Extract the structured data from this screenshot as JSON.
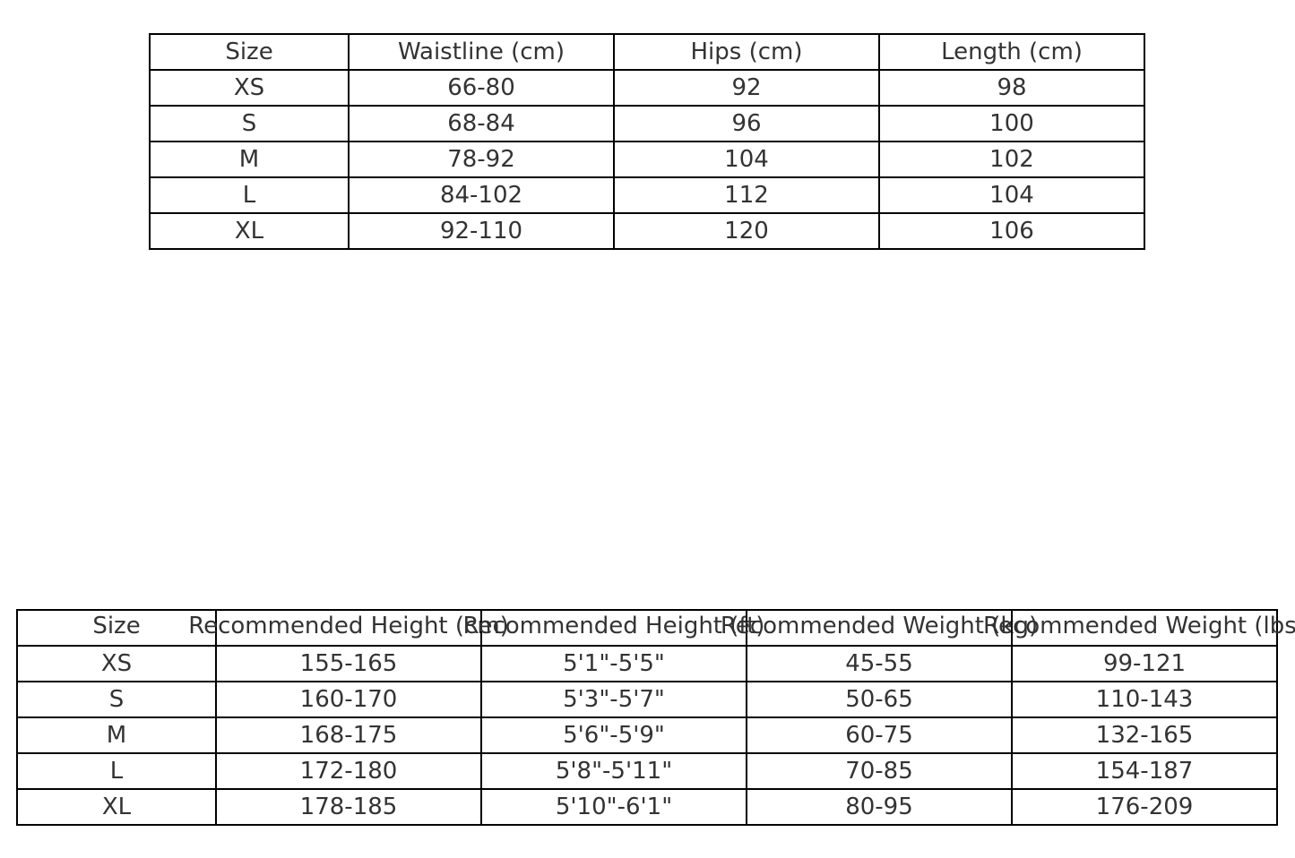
{
  "chart_data": [
    {
      "type": "table",
      "columns": [
        "Size",
        "Waistline (cm)",
        "Hips (cm)",
        "Length (cm)"
      ],
      "rows": [
        [
          "XS",
          "66-80",
          "92",
          "98"
        ],
        [
          "S",
          "68-84",
          "96",
          "100"
        ],
        [
          "M",
          "78-92",
          "104",
          "102"
        ],
        [
          "L",
          "84-102",
          "112",
          "104"
        ],
        [
          "XL",
          "92-110",
          "120",
          "106"
        ]
      ]
    },
    {
      "type": "table",
      "columns": [
        "Size",
        "Recommended Height (cm)",
        "Recommended Height (ft)",
        "Recommended Weight (kg)",
        "Recommended Weight (lbs)"
      ],
      "rows": [
        [
          "XS",
          "155-165",
          "5'1\"-5'5\"",
          "45-55",
          "99-121"
        ],
        [
          "S",
          "160-170",
          "5'3\"-5'7\"",
          "50-65",
          "110-143"
        ],
        [
          "M",
          "168-175",
          "5'6\"-5'9\"",
          "60-75",
          "132-165"
        ],
        [
          "L",
          "172-180",
          "5'8\"-5'11\"",
          "70-85",
          "154-187"
        ],
        [
          "XL",
          "178-185",
          "5'10\"-6'1\"",
          "80-95",
          "176-209"
        ]
      ]
    }
  ]
}
